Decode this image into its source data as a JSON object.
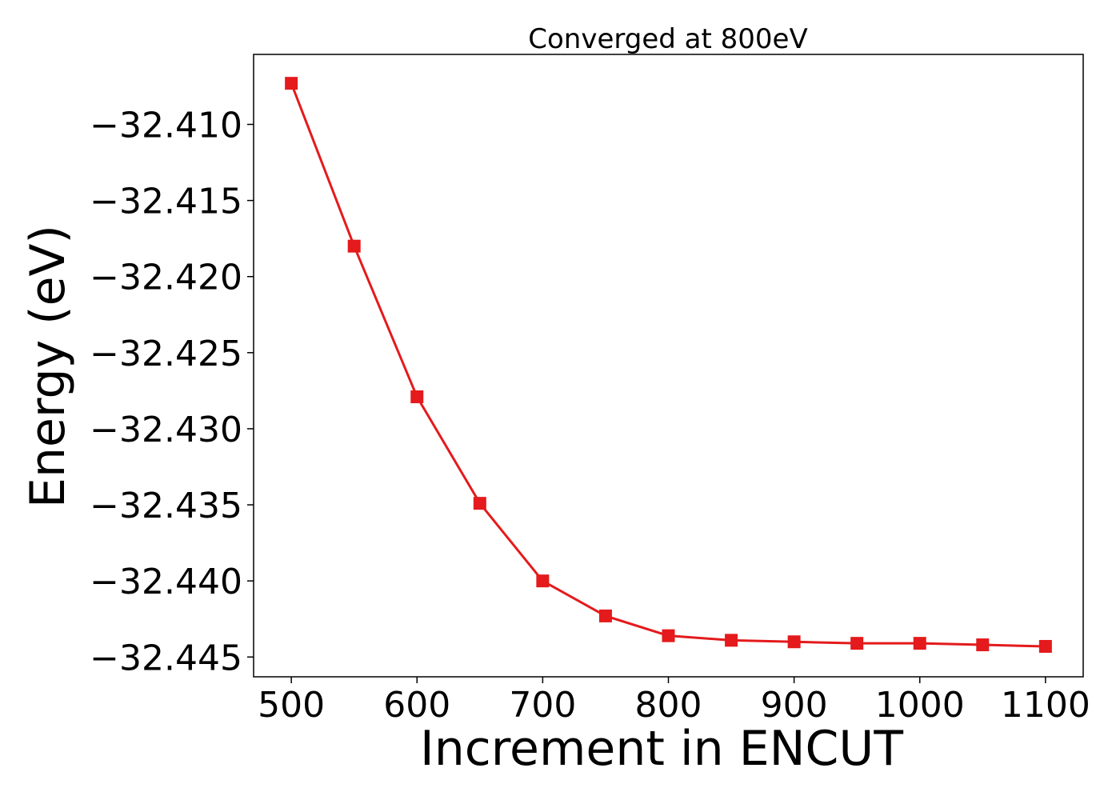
{
  "chart_data": {
    "type": "line",
    "title": "Converged at 800eV",
    "xlabel": "Increment in ENCUT",
    "ylabel": "Energy (eV)",
    "x": [
      500,
      550,
      600,
      650,
      700,
      750,
      800,
      850,
      900,
      950,
      1000,
      1050,
      1100
    ],
    "series": [
      {
        "values": [
          -32.4073,
          -32.418,
          -32.4279,
          -32.4349,
          -32.44,
          -32.4423,
          -32.4436,
          -32.4439,
          -32.444,
          -32.4441,
          -32.4441,
          -32.4442,
          -32.4443
        ],
        "color": "#e41a1c",
        "marker": "square"
      }
    ],
    "xticks": [
      500,
      600,
      700,
      800,
      900,
      1000,
      1100
    ],
    "xtick_labels": [
      "500",
      "600",
      "700",
      "800",
      "900",
      "1000",
      "1100"
    ],
    "yticks": [
      -32.41,
      -32.415,
      -32.42,
      -32.425,
      -32.43,
      -32.435,
      -32.44,
      -32.445
    ],
    "ytick_labels": [
      "−32.410",
      "−32.415",
      "−32.420",
      "−32.425",
      "−32.430",
      "−32.435",
      "−32.440",
      "−32.445"
    ],
    "xlim": [
      470,
      1130
    ],
    "ylim": [
      -32.4463,
      -32.4054
    ],
    "grid": false,
    "legend": "none"
  }
}
